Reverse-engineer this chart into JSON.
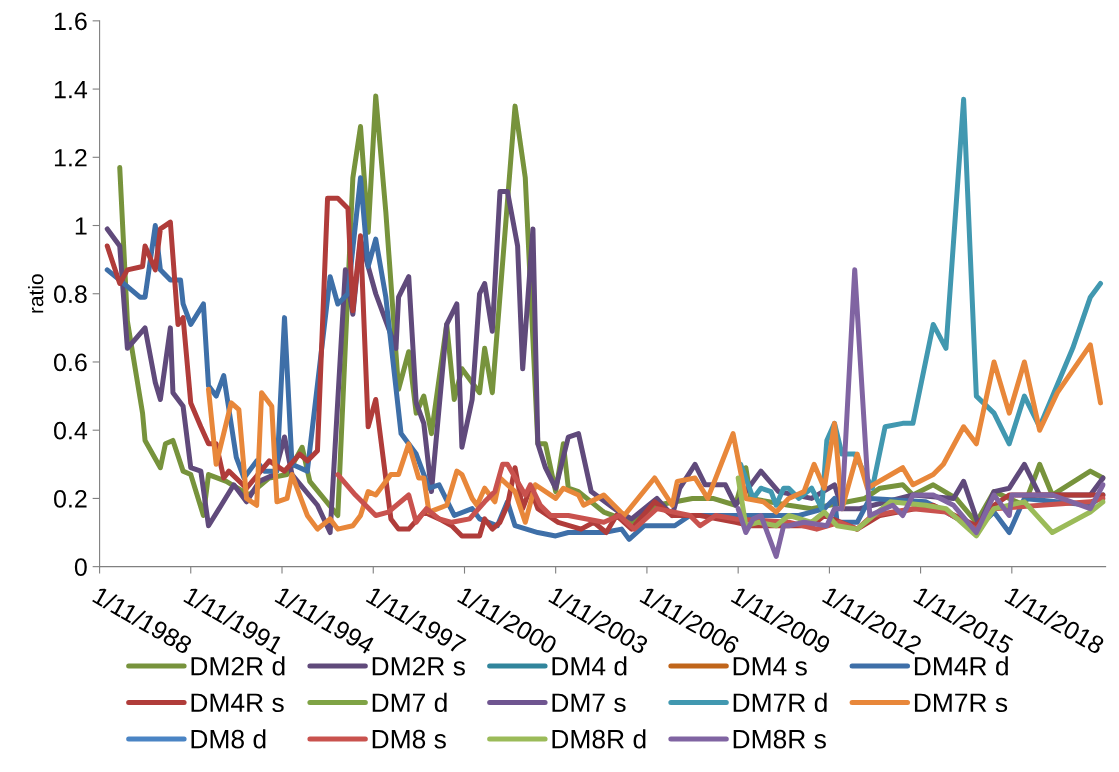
{
  "chart_data": {
    "type": "line",
    "ylabel": "ratio",
    "ylim": [
      0,
      1.6
    ],
    "yticks": [
      0,
      {
        "value": 0.2,
        "label": "0.2"
      },
      {
        "value": 0.4,
        "label": "0.4"
      },
      {
        "value": 0.6,
        "label": "0.6"
      },
      {
        "value": 0.8,
        "label": "0.8"
      },
      1,
      {
        "value": 1.2,
        "label": "1.2"
      },
      {
        "value": 1.4,
        "label": "1.4"
      },
      {
        "value": 1.6,
        "label": "1.6"
      }
    ],
    "xlim": [
      "1988-11-01",
      "2021-12-01"
    ],
    "xticks": [
      {
        "value": "1988-11-01",
        "label": "1/11/1988"
      },
      {
        "value": "1991-11-01",
        "label": "1/11/1991"
      },
      {
        "value": "1994-11-01",
        "label": "1/11/1994"
      },
      {
        "value": "1997-11-01",
        "label": "1/11/1997"
      },
      {
        "value": "2000-11-01",
        "label": "1/11/2000"
      },
      {
        "value": "2003-11-01",
        "label": "1/11/2003"
      },
      {
        "value": "2006-11-01",
        "label": "1/11/2006"
      },
      {
        "value": "2009-11-01",
        "label": "1/11/2009"
      },
      {
        "value": "2012-11-01",
        "label": "1/11/2012"
      },
      {
        "value": "2015-11-01",
        "label": "1/11/2015"
      },
      {
        "value": "2018-11-01",
        "label": "1/11/2018"
      }
    ],
    "legend": "bottom",
    "series": [
      {
        "name": "DM2R d",
        "color": "#77933c",
        "x": [
          "1989-07",
          "1989-10",
          "1990-04",
          "1990-05",
          "1990-11",
          "1991-01",
          "1991-04",
          "1991-08",
          "1991-11",
          "1992-04",
          "1992-06",
          "1993-01",
          "1993-10",
          "1994-06",
          "1995-01",
          "1995-07",
          "1995-10",
          "1996-09",
          "1997-03",
          "1997-06",
          "1997-09",
          "1997-12",
          "1998-04",
          "1998-09",
          "1999-01",
          "1999-04",
          "1999-07",
          "1999-10",
          "2000-04",
          "2000-07",
          "2000-10",
          "2001-05",
          "2001-07",
          "2001-10",
          "2002-07",
          "2002-11",
          "2003-04",
          "2003-07",
          "2003-11",
          "2004-02",
          "2004-04",
          "2004-08",
          "2005-06",
          "2006-05",
          "2007-03",
          "2008-05",
          "2009-01",
          "2009-10",
          "2010-02",
          "2010-04",
          "2011-07",
          "2012-04",
          "2014-01",
          "2014-07",
          "2015-04",
          "2015-08",
          "2016-04",
          "2017-01",
          "2017-09",
          "2018-04",
          "2019-04",
          "2019-10",
          "2020-03",
          "2021-06",
          "2021-11"
        ],
        "values": [
          1.17,
          0.72,
          0.45,
          0.37,
          0.29,
          0.36,
          0.37,
          0.28,
          0.27,
          0.15,
          0.27,
          0.25,
          0.21,
          0.26,
          0.27,
          0.35,
          0.25,
          0.15,
          1.14,
          1.29,
          0.98,
          1.38,
          1.04,
          0.52,
          0.63,
          0.45,
          0.5,
          0.39,
          0.71,
          0.49,
          0.58,
          0.51,
          0.64,
          0.51,
          1.35,
          1.14,
          0.36,
          0.36,
          0.22,
          0.36,
          0.23,
          0.22,
          0.16,
          0.13,
          0.18,
          0.2,
          0.2,
          0.18,
          0.29,
          0.2,
          0.18,
          0.17,
          0.2,
          0.23,
          0.24,
          0.21,
          0.24,
          0.2,
          0.13,
          0.22,
          0.18,
          0.3,
          0.21,
          0.28,
          0.26
        ]
      },
      {
        "name": "DM2R s",
        "color": "#604a7b",
        "x": [
          "1989-02",
          "1989-07",
          "1989-10",
          "1990-05",
          "1990-09",
          "1990-11",
          "1991-03",
          "1991-04",
          "1991-08",
          "1991-11",
          "1992-03",
          "1992-06",
          "1992-11",
          "1993-04",
          "1993-09",
          "1994-02",
          "1994-08",
          "1994-12",
          "1995-03",
          "1996-01",
          "1996-06",
          "1996-12",
          "1997-03",
          "1997-06",
          "1997-12",
          "1998-08",
          "1998-09",
          "1999-01",
          "1999-04",
          "1999-07",
          "1999-10",
          "2000-04",
          "2000-08",
          "2000-10",
          "2001-02",
          "2001-05",
          "2001-07",
          "2001-10",
          "2002-01",
          "2002-04",
          "2002-08",
          "2002-10",
          "2003-02",
          "2003-04",
          "2003-07",
          "2003-11",
          "2004-04",
          "2004-08",
          "2005-01",
          "2005-12",
          "2006-05",
          "2007-03",
          "2007-09",
          "2007-12",
          "2008-06",
          "2008-10",
          "2009-06",
          "2009-10",
          "2010-08",
          "2011-03",
          "2012-04",
          "2013-01",
          "2013-04",
          "2013-11",
          "2015-08",
          "2016-12",
          "2017-04",
          "2017-10",
          "2018-04",
          "2018-10",
          "2019-04",
          "2019-10",
          "2021-06",
          "2021-11"
        ],
        "values": [
          0.99,
          0.94,
          0.64,
          0.7,
          0.54,
          0.49,
          0.7,
          0.51,
          0.47,
          0.29,
          0.28,
          0.12,
          0.18,
          0.24,
          0.19,
          0.25,
          0.27,
          0.38,
          0.27,
          0.18,
          0.1,
          0.87,
          0.74,
          0.96,
          0.8,
          0.64,
          0.79,
          0.85,
          0.48,
          0.42,
          0.22,
          0.71,
          0.77,
          0.35,
          0.49,
          0.8,
          0.83,
          0.69,
          1.1,
          1.1,
          0.94,
          0.58,
          0.99,
          0.36,
          0.29,
          0.23,
          0.38,
          0.39,
          0.22,
          0.16,
          0.14,
          0.2,
          0.15,
          0.23,
          0.3,
          0.24,
          0.24,
          0.18,
          0.28,
          0.22,
          0.2,
          0.24,
          0.17,
          0.17,
          0.21,
          0.2,
          0.25,
          0.12,
          0.22,
          0.23,
          0.3,
          0.21,
          0.21,
          0.26
        ]
      },
      {
        "name": "DM4 d",
        "color": "#31859c"
      },
      {
        "name": "DM4 s",
        "color": "#c0651a"
      },
      {
        "name": "DM4R d",
        "color": "#3e6fa8",
        "x": [
          "1989-02",
          "1989-07",
          "1990-03",
          "1990-05",
          "1990-09",
          "1990-11",
          "1991-03",
          "1991-07",
          "1991-08",
          "1991-11",
          "1992-04",
          "1992-06",
          "1992-09",
          "1992-12",
          "1993-05",
          "1993-08",
          "1994-01",
          "1994-04",
          "1994-09",
          "1994-12",
          "1995-03",
          "1995-09",
          "1996-06",
          "1996-09",
          "1997-01",
          "1997-06",
          "1997-09",
          "1997-12",
          "1998-04",
          "1998-10",
          "1999-04",
          "1999-09",
          "2000-01",
          "2000-07",
          "2001-02",
          "2001-05",
          "2001-12",
          "2002-04",
          "2002-07",
          "2003-04",
          "2003-11",
          "2004-04",
          "2005-06",
          "2006-01",
          "2006-04",
          "2006-10",
          "2007-10",
          "2008-04",
          "2009-01",
          "2009-10",
          "2011-11",
          "2012-09",
          "2013-01",
          "2013-02",
          "2013-10",
          "2014-03",
          "2016-01",
          "2016-09",
          "2017-09",
          "2018-04",
          "2018-10",
          "2019-04",
          "2021-06",
          "2021-11"
        ],
        "values": [
          0.87,
          0.84,
          0.79,
          0.79,
          1.0,
          0.87,
          0.84,
          0.84,
          0.77,
          0.71,
          0.77,
          0.53,
          0.5,
          0.56,
          0.32,
          0.26,
          0.31,
          0.28,
          0.28,
          0.73,
          0.3,
          0.28,
          0.85,
          0.77,
          0.8,
          1.14,
          0.88,
          0.96,
          0.79,
          0.39,
          0.33,
          0.23,
          0.24,
          0.15,
          0.17,
          0.14,
          0.12,
          0.19,
          0.12,
          0.1,
          0.09,
          0.1,
          0.1,
          0.11,
          0.08,
          0.12,
          0.12,
          0.15,
          0.15,
          0.15,
          0.15,
          0.17,
          0.2,
          0.13,
          0.13,
          0.2,
          0.19,
          0.16,
          0.11,
          0.16,
          0.1,
          0.2,
          0.18,
          0.21
        ]
      },
      {
        "name": "DM4R s",
        "color": "#b03c3a",
        "x": [
          "1989-02",
          "1989-07",
          "1989-10",
          "1990-04",
          "1990-05",
          "1990-09",
          "1990-11",
          "1991-03",
          "1991-06",
          "1991-08",
          "1991-11",
          "1992-03",
          "1992-06",
          "1992-09",
          "1992-12",
          "1993-02",
          "1993-09",
          "1994-06",
          "1994-12",
          "1995-06",
          "1995-09",
          "1996-01",
          "1996-05",
          "1996-09",
          "1997-01",
          "1997-03",
          "1997-06",
          "1997-09",
          "1997-12",
          "1998-06",
          "1998-09",
          "1999-01",
          "1999-07",
          "2000-01",
          "2000-06",
          "2000-10",
          "2001-02",
          "2001-05",
          "2001-07",
          "2001-10",
          "2002-01",
          "2002-04",
          "2002-07",
          "2002-10",
          "2003-01",
          "2003-04",
          "2003-12",
          "2004-09",
          "2005-02",
          "2005-07",
          "2005-11",
          "2006-05",
          "2007-02",
          "2007-09",
          "2008-08",
          "2009-10",
          "2010-04",
          "2011-07",
          "2012-04",
          "2012-09",
          "2013-10",
          "2014-07",
          "2016-04",
          "2017-09",
          "2018-04",
          "2018-10",
          "2021-06",
          "2021-11"
        ],
        "values": [
          0.94,
          0.83,
          0.87,
          0.88,
          0.94,
          0.87,
          0.99,
          1.01,
          0.71,
          0.73,
          0.48,
          0.41,
          0.36,
          0.36,
          0.26,
          0.28,
          0.23,
          0.31,
          0.28,
          0.33,
          0.31,
          0.34,
          1.08,
          1.08,
          1.05,
          0.75,
          0.97,
          0.41,
          0.49,
          0.14,
          0.11,
          0.11,
          0.16,
          0.14,
          0.12,
          0.09,
          0.09,
          0.09,
          0.14,
          0.11,
          0.13,
          0.18,
          0.29,
          0.17,
          0.23,
          0.17,
          0.13,
          0.11,
          0.13,
          0.1,
          0.15,
          0.11,
          0.19,
          0.15,
          0.15,
          0.13,
          0.12,
          0.12,
          0.12,
          0.15,
          0.11,
          0.15,
          0.18,
          0.12,
          0.18,
          0.21,
          0.21,
          0.21
        ]
      },
      {
        "name": "DM7 d",
        "color": "#7fa345"
      },
      {
        "name": "DM7 s",
        "color": "#6f5590"
      },
      {
        "name": "DM7R d",
        "color": "#4198b0",
        "x": [
          "2009-12",
          "2010-05",
          "2010-08",
          "2010-12",
          "2011-02",
          "2011-05",
          "2011-07",
          "2011-11",
          "2012-04",
          "2012-08",
          "2012-10",
          "2013-01",
          "2013-04",
          "2013-09",
          "2014-04",
          "2014-09",
          "2015-04",
          "2015-08",
          "2016-04",
          "2016-09",
          "2017-04",
          "2017-09",
          "2018-04",
          "2018-10",
          "2019-04",
          "2019-10",
          "2020-11",
          "2021-06",
          "2021-10"
        ],
        "values": [
          0.3,
          0.2,
          0.23,
          0.22,
          0.18,
          0.23,
          0.23,
          0.2,
          0.23,
          0.17,
          0.37,
          0.42,
          0.33,
          0.33,
          0.23,
          0.41,
          0.42,
          0.42,
          0.71,
          0.64,
          1.37,
          0.5,
          0.45,
          0.36,
          0.5,
          0.41,
          0.64,
          0.79,
          0.83
        ]
      },
      {
        "name": "DM7R s",
        "color": "#e8873a",
        "x": [
          "1992-06",
          "1992-09",
          "1993-03",
          "1993-06",
          "1993-09",
          "1994-01",
          "1994-03",
          "1994-07",
          "1994-09",
          "1995-01",
          "1995-03",
          "1995-09",
          "1996-01",
          "1996-06",
          "1996-09",
          "1997-03",
          "1997-06",
          "1997-09",
          "1997-12",
          "1998-06",
          "1998-09",
          "1999-01",
          "1999-05",
          "1999-07",
          "1999-09",
          "2000-04",
          "2000-08",
          "2000-10",
          "2001-02",
          "2001-04",
          "2001-07",
          "2001-11",
          "2002-01",
          "2002-07",
          "2002-11",
          "2003-03",
          "2003-11",
          "2004-02",
          "2004-08",
          "2004-10",
          "2005-06",
          "2006-02",
          "2007-02",
          "2007-09",
          "2007-11",
          "2008-06",
          "2008-11",
          "2009-09",
          "2010-02",
          "2010-09",
          "2011-02",
          "2011-07",
          "2012-01",
          "2012-05",
          "2012-09",
          "2013-01",
          "2013-04",
          "2013-10",
          "2014-02",
          "2015-04",
          "2015-08",
          "2016-04",
          "2016-08",
          "2017-04",
          "2017-09",
          "2018-04",
          "2018-10",
          "2019-04",
          "2019-10",
          "2020-05",
          "2021-06",
          "2021-10"
        ],
        "values": [
          0.52,
          0.3,
          0.48,
          0.46,
          0.2,
          0.18,
          0.51,
          0.47,
          0.19,
          0.2,
          0.27,
          0.15,
          0.11,
          0.14,
          0.11,
          0.12,
          0.15,
          0.22,
          0.21,
          0.27,
          0.27,
          0.36,
          0.26,
          0.26,
          0.16,
          0.18,
          0.28,
          0.27,
          0.2,
          0.18,
          0.23,
          0.19,
          0.26,
          0.22,
          0.13,
          0.24,
          0.2,
          0.23,
          0.21,
          0.18,
          0.21,
          0.15,
          0.26,
          0.18,
          0.25,
          0.26,
          0.2,
          0.39,
          0.2,
          0.19,
          0.16,
          0.2,
          0.22,
          0.3,
          0.23,
          0.42,
          0.17,
          0.33,
          0.23,
          0.29,
          0.24,
          0.27,
          0.3,
          0.41,
          0.36,
          0.6,
          0.45,
          0.6,
          0.4,
          0.51,
          0.65,
          0.48
        ]
      },
      {
        "name": "DM8 d",
        "color": "#4a84c4"
      },
      {
        "name": "DM8 s",
        "color": "#c9524e",
        "x": [
          "1996-09",
          "1997-04",
          "1997-12",
          "1998-05",
          "1999-01",
          "1999-04",
          "1999-08",
          "2000-01",
          "2000-06",
          "2001-01",
          "2001-07",
          "2001-11",
          "2002-02",
          "2002-04",
          "2002-11",
          "2003-01",
          "2003-05",
          "2003-09",
          "2004-04",
          "2005-06",
          "2005-12",
          "2006-06",
          "2007-03",
          "2008-04",
          "2008-08",
          "2009-02",
          "2009-10",
          "2011-07",
          "2012-06",
          "2013-03",
          "2013-10",
          "2014-04",
          "2015-08",
          "2016-09",
          "2017-09",
          "2018-04",
          "2021-06",
          "2021-11"
        ],
        "values": [
          0.27,
          0.21,
          0.15,
          0.16,
          0.21,
          0.13,
          0.17,
          0.14,
          0.13,
          0.14,
          0.19,
          0.22,
          0.3,
          0.3,
          0.21,
          0.24,
          0.18,
          0.15,
          0.15,
          0.13,
          0.15,
          0.11,
          0.17,
          0.15,
          0.12,
          0.15,
          0.14,
          0.13,
          0.11,
          0.13,
          0.11,
          0.15,
          0.17,
          0.16,
          0.11,
          0.17,
          0.19,
          0.2
        ]
      },
      {
        "name": "DM8R d",
        "color": "#9bbb59",
        "x": [
          "2009-11",
          "2010-02",
          "2010-07",
          "2011-02",
          "2011-07",
          "2012-04",
          "2012-09",
          "2013-02",
          "2013-10",
          "2014-11",
          "2016-01",
          "2016-09",
          "2017-09",
          "2018-04",
          "2019-04",
          "2020-03",
          "2021-06",
          "2021-11"
        ],
        "values": [
          0.26,
          0.12,
          0.13,
          0.12,
          0.15,
          0.13,
          0.16,
          0.12,
          0.11,
          0.19,
          0.18,
          0.17,
          0.09,
          0.17,
          0.19,
          0.1,
          0.16,
          0.19
        ]
      },
      {
        "name": "DM8R s",
        "color": "#8064a2",
        "x": [
          "2009-11",
          "2010-02",
          "2010-05",
          "2010-08",
          "2011-02",
          "2011-05",
          "2011-07",
          "2012-01",
          "2012-10",
          "2013-01",
          "2013-04",
          "2013-09",
          "2014-03",
          "2014-12",
          "2015-04",
          "2015-08",
          "2016-04",
          "2016-12",
          "2017-09",
          "2018-04",
          "2018-10",
          "2018-11",
          "2020-03",
          "2021-06",
          "2021-11"
        ],
        "values": [
          0.17,
          0.1,
          0.14,
          0.15,
          0.03,
          0.12,
          0.12,
          0.13,
          0.12,
          0.17,
          0.17,
          0.87,
          0.15,
          0.18,
          0.15,
          0.21,
          0.21,
          0.18,
          0.1,
          0.21,
          0.15,
          0.21,
          0.21,
          0.17,
          0.24
        ]
      }
    ]
  }
}
